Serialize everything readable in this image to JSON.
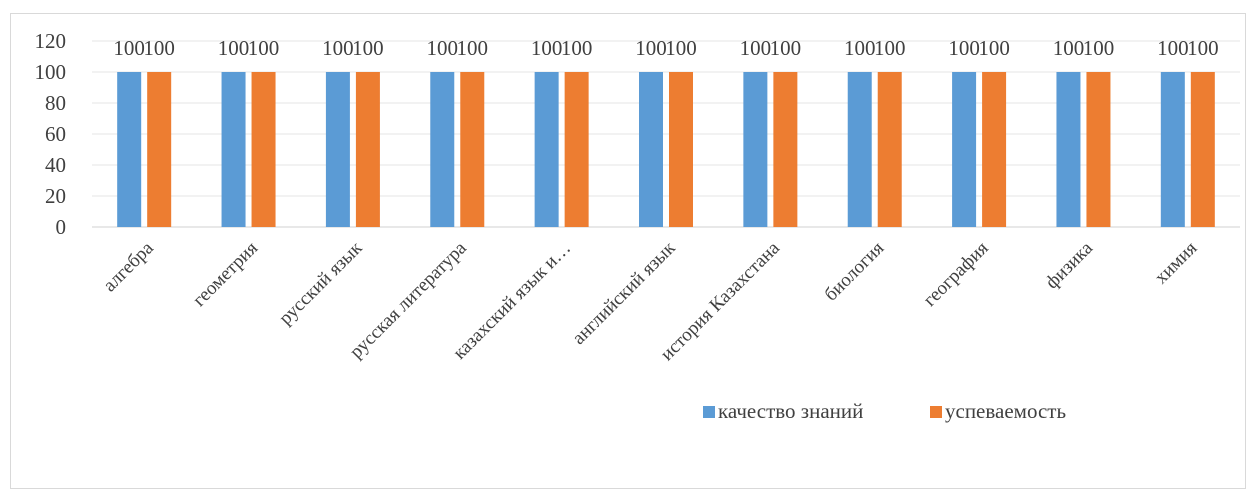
{
  "chart_data": {
    "type": "bar",
    "title": "",
    "xlabel": "",
    "ylabel": "",
    "ylim": [
      0,
      120
    ],
    "yticks": [
      0,
      20,
      40,
      60,
      80,
      100,
      120
    ],
    "grid": true,
    "legend_position": "bottom-right",
    "categories": [
      "алгебра",
      "геометрия",
      "русский язык",
      "русская литература",
      "казахский язык и…",
      "английский язык",
      "история Казахстана",
      "биология",
      "география",
      "физика",
      "химия"
    ],
    "series": [
      {
        "name": "качество знаний",
        "color": "#5b9bd5",
        "values": [
          100,
          100,
          100,
          100,
          100,
          100,
          100,
          100,
          100,
          100,
          100
        ]
      },
      {
        "name": "успеваемость",
        "color": "#ed7d31",
        "values": [
          100,
          100,
          100,
          100,
          100,
          100,
          100,
          100,
          100,
          100,
          100
        ]
      }
    ]
  }
}
